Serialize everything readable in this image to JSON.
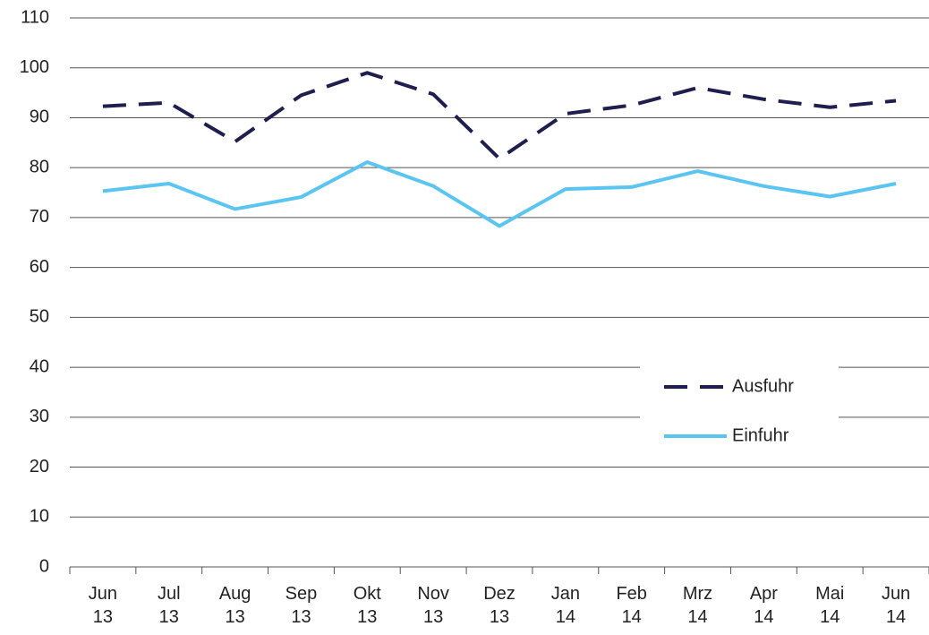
{
  "chart_data": {
    "type": "line",
    "categories": [
      "Jun 13",
      "Jul 13",
      "Aug 13",
      "Sep 13",
      "Okt 13",
      "Nov 13",
      "Dez 13",
      "Jan 14",
      "Feb 14",
      "Mrz 14",
      "Apr 14",
      "Mai 14",
      "Jun 14"
    ],
    "series": [
      {
        "name": "Ausfuhr",
        "color": "#1f1f4f",
        "dashed": true,
        "values": [
          92.3,
          93,
          85.2,
          94.5,
          99,
          94.7,
          81.8,
          90.8,
          92.5,
          96,
          93.7,
          92.1,
          93.4
        ]
      },
      {
        "name": "Einfuhr",
        "color": "#5bc5f2",
        "dashed": false,
        "values": [
          75.3,
          76.8,
          71.7,
          74.1,
          81.1,
          76.3,
          68.3,
          75.7,
          76.1,
          79.3,
          76.3,
          74.2,
          76.8
        ]
      }
    ],
    "ylim": [
      0,
      110
    ],
    "yticks": [
      0,
      10,
      20,
      30,
      40,
      50,
      60,
      70,
      80,
      90,
      100,
      110
    ],
    "grid": true,
    "legend": "center right"
  }
}
